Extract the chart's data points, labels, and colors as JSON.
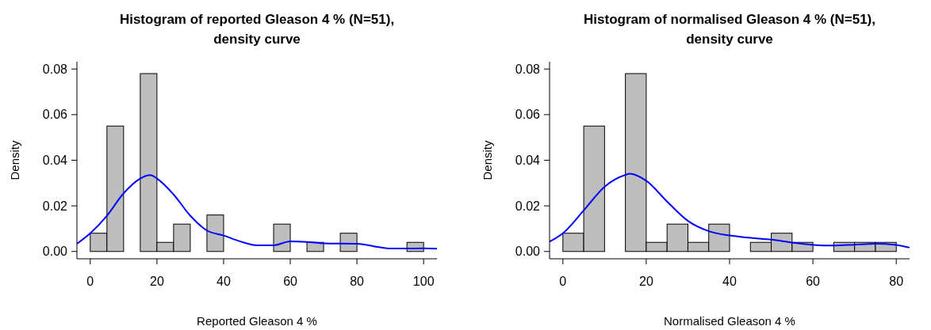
{
  "chart_data": [
    {
      "type": "histogram",
      "title": "Histogram of reported Gleason 4 % (N=51),\ndensity curve",
      "xlabel": "Reported Gleason 4 %",
      "ylabel": "Density",
      "bins": [
        0,
        5,
        10,
        15,
        20,
        25,
        30,
        35,
        40,
        45,
        50,
        55,
        60,
        65,
        70,
        75,
        80,
        85,
        90,
        95,
        100
      ],
      "values": [
        0.008,
        0.055,
        0,
        0.078,
        0.004,
        0.012,
        0,
        0.016,
        0,
        0,
        0,
        0.012,
        0,
        0.004,
        0,
        0.008,
        0,
        0,
        0,
        0.004
      ],
      "color": "#bebebe",
      "series": [
        {
          "type": "line",
          "color": "#0000ff",
          "x": [
            -4,
            0,
            5,
            10,
            15,
            18,
            20,
            25,
            30,
            35,
            40,
            45,
            50,
            55,
            60,
            65,
            70,
            80,
            85,
            90,
            95,
            100,
            104
          ],
          "values": [
            0.0034,
            0.008,
            0.0157,
            0.0255,
            0.032,
            0.0335,
            0.032,
            0.025,
            0.0157,
            0.0092,
            0.007,
            0.0044,
            0.0027,
            0.0027,
            0.0044,
            0.0042,
            0.0036,
            0.0034,
            0.0023,
            0.0013,
            0.0013,
            0.0014,
            0.0012
          ]
        }
      ],
      "xlim": [
        -4,
        104
      ],
      "xticks": [
        0,
        20,
        40,
        60,
        80,
        100
      ],
      "ylim": [
        -0.0032,
        0.0832
      ],
      "yticks": [
        {
          "value": 0,
          "label": "0.00"
        },
        {
          "value": 0.02,
          "label": "0.02"
        },
        {
          "value": 0.04,
          "label": "0.04"
        },
        {
          "value": 0.06,
          "label": "0.06"
        },
        {
          "value": 0.08,
          "label": "0.08"
        }
      ]
    },
    {
      "type": "histogram",
      "title": "Histogram of normalised Gleason 4 % (N=51),\ndensity curve",
      "xlabel": "Normalised Gleason 4 %",
      "ylabel": "Density",
      "bins": [
        0,
        5,
        10,
        15,
        20,
        25,
        30,
        35,
        40,
        45,
        50,
        55,
        60,
        65,
        70,
        75,
        80
      ],
      "values": [
        0.008,
        0.055,
        0,
        0.078,
        0.004,
        0.012,
        0.004,
        0.012,
        0,
        0.004,
        0.008,
        0.004,
        0,
        0.004,
        0.004,
        0.004
      ],
      "color": "#bebebe",
      "series": [
        {
          "type": "line",
          "color": "#0000ff",
          "x": [
            -3.2,
            0,
            5,
            10,
            15,
            16,
            20,
            25,
            30,
            35,
            40,
            45,
            50,
            55,
            60,
            65,
            70,
            75,
            80,
            83.2
          ],
          "values": [
            0.0043,
            0.008,
            0.018,
            0.0284,
            0.0336,
            0.0341,
            0.031,
            0.0219,
            0.0134,
            0.0089,
            0.007,
            0.006,
            0.0052,
            0.0039,
            0.0029,
            0.0026,
            0.003,
            0.0034,
            0.0029,
            0.0017
          ]
        }
      ],
      "xlim": [
        -3.2,
        83.2
      ],
      "xticks": [
        0,
        20,
        40,
        60,
        80
      ],
      "ylim": [
        -0.0032,
        0.0832
      ],
      "yticks": [
        {
          "value": 0,
          "label": "0.00"
        },
        {
          "value": 0.02,
          "label": "0.02"
        },
        {
          "value": 0.04,
          "label": "0.04"
        },
        {
          "value": 0.06,
          "label": "0.06"
        },
        {
          "value": 0.08,
          "label": "0.08"
        }
      ]
    }
  ]
}
